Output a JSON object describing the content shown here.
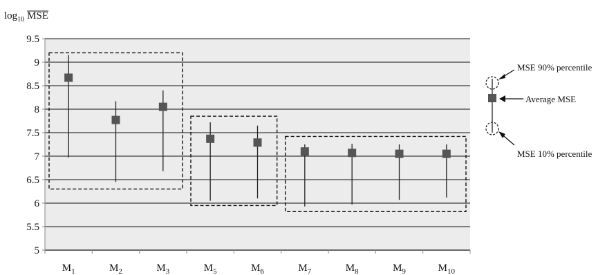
{
  "chart_data": {
    "type": "errorbar",
    "ylabel": {
      "prefix": "log",
      "subscript": "10",
      "quantity": "MSE"
    },
    "ylim": [
      5,
      9.5
    ],
    "yticks": [
      "5",
      "5.5",
      "6",
      "6.5",
      "7",
      "7.5",
      "8",
      "8.5",
      "9",
      "9.5"
    ],
    "grid": true,
    "categories": [
      {
        "base": "M",
        "sub": "1"
      },
      {
        "base": "M",
        "sub": "2"
      },
      {
        "base": "M",
        "sub": "3"
      },
      {
        "base": "M",
        "sub": "5"
      },
      {
        "base": "M",
        "sub": "6"
      },
      {
        "base": "M",
        "sub": "7"
      },
      {
        "base": "M",
        "sub": "8"
      },
      {
        "base": "M",
        "sub": "9"
      },
      {
        "base": "M",
        "sub": "10"
      }
    ],
    "mean": [
      8.67,
      7.77,
      8.05,
      7.37,
      7.29,
      7.1,
      7.07,
      7.05,
      7.05
    ],
    "p90": [
      9.15,
      8.17,
      8.4,
      7.72,
      7.65,
      7.25,
      7.26,
      7.25,
      7.25
    ],
    "p10": [
      6.97,
      6.45,
      6.68,
      6.05,
      6.1,
      5.93,
      5.97,
      6.07,
      6.12
    ],
    "groups": [
      {
        "from_index": 0,
        "to_index": 2,
        "ymin": 6.3,
        "ymax": 9.2
      },
      {
        "from_index": 3,
        "to_index": 4,
        "ymin": 5.95,
        "ymax": 7.85
      },
      {
        "from_index": 5,
        "to_index": 8,
        "ymin": 5.82,
        "ymax": 7.42
      }
    ],
    "legend": {
      "position": "right",
      "p90_label": "MSE 90% percentile",
      "mean_label": "Average MSE",
      "p10_label": "MSE 10% percentile"
    },
    "colors": {
      "plot_bg": "#ececec",
      "marker": "#555555",
      "line": "#222222",
      "grid": "#111111"
    }
  }
}
